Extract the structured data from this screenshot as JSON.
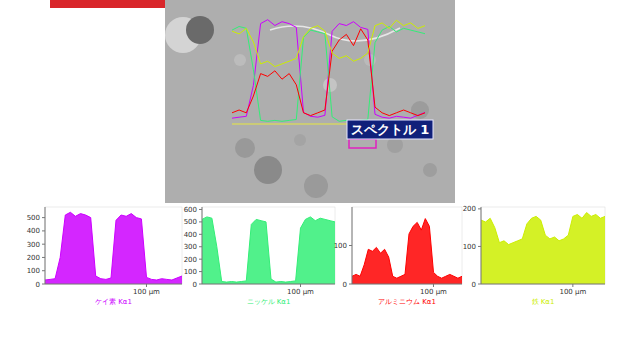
{
  "image": {
    "label": "スペクトル 1"
  },
  "chart_data": [
    {
      "type": "line",
      "x_label": "ケイ素 Kα1",
      "color": "#cc00ff",
      "x": [
        0,
        5,
        10,
        15,
        20,
        25,
        30,
        35,
        40,
        45,
        50,
        55,
        60,
        65,
        70,
        75,
        80,
        85,
        90,
        95,
        100,
        105,
        110,
        115,
        120,
        125,
        130,
        135
      ],
      "values": [
        30,
        35,
        40,
        200,
        520,
        540,
        510,
        530,
        520,
        500,
        60,
        40,
        35,
        45,
        480,
        520,
        510,
        530,
        500,
        490,
        50,
        35,
        30,
        40,
        35,
        30,
        45,
        60
      ],
      "xlim": [
        0,
        135
      ],
      "xticks": [
        {
          "value": 100,
          "label": "100 μm"
        }
      ],
      "ylim": [
        0,
        580
      ],
      "yticks": [
        0,
        100,
        200,
        300,
        400,
        500
      ]
    },
    {
      "type": "line",
      "x_label": "ニッケル Kα1",
      "color": "#33ee77",
      "x": [
        0,
        5,
        10,
        15,
        20,
        25,
        30,
        35,
        40,
        45,
        50,
        55,
        60,
        65,
        70,
        75,
        80,
        85,
        90,
        95,
        100,
        105,
        110,
        115,
        120,
        125,
        130,
        135
      ],
      "values": [
        520,
        540,
        530,
        300,
        20,
        15,
        20,
        15,
        20,
        25,
        480,
        520,
        510,
        500,
        40,
        15,
        20,
        15,
        20,
        25,
        450,
        520,
        540,
        510,
        530,
        520,
        510,
        500
      ],
      "xlim": [
        0,
        135
      ],
      "xticks": [
        {
          "value": 100,
          "label": "100 μm"
        }
      ],
      "ylim": [
        0,
        620
      ],
      "yticks": [
        0,
        100,
        200,
        300,
        400,
        500,
        600
      ]
    },
    {
      "type": "line",
      "x_label": "アルミニウム Kα1",
      "color": "#ff0000",
      "x": [
        0,
        5,
        10,
        15,
        20,
        25,
        30,
        35,
        40,
        45,
        50,
        55,
        60,
        65,
        70,
        75,
        80,
        85,
        90,
        95,
        100,
        105,
        110,
        115,
        120,
        125,
        130,
        135
      ],
      "values": [
        20,
        25,
        20,
        50,
        90,
        85,
        95,
        80,
        90,
        70,
        20,
        15,
        20,
        25,
        130,
        150,
        160,
        140,
        170,
        150,
        30,
        20,
        15,
        20,
        25,
        20,
        15,
        20
      ],
      "xlim": [
        0,
        135
      ],
      "xticks": [
        {
          "value": 100,
          "label": "100 μm"
        }
      ],
      "ylim": [
        0,
        200
      ],
      "yticks": [
        0,
        100
      ]
    },
    {
      "type": "line",
      "x_label": "鉄 Kα1",
      "color": "#ccee00",
      "x": [
        0,
        5,
        10,
        15,
        20,
        25,
        30,
        35,
        40,
        45,
        50,
        55,
        60,
        65,
        70,
        75,
        80,
        85,
        90,
        95,
        100,
        105,
        110,
        115,
        120,
        125,
        130,
        135
      ],
      "values": [
        170,
        165,
        175,
        150,
        110,
        115,
        105,
        110,
        115,
        120,
        160,
        175,
        180,
        170,
        130,
        120,
        125,
        115,
        120,
        130,
        180,
        185,
        175,
        190,
        180,
        185,
        175,
        180
      ],
      "xlim": [
        0,
        135
      ],
      "xticks": [
        {
          "value": 100,
          "label": "100 μm"
        }
      ],
      "ylim": [
        0,
        205
      ],
      "yticks": [
        0,
        100,
        200
      ]
    }
  ]
}
